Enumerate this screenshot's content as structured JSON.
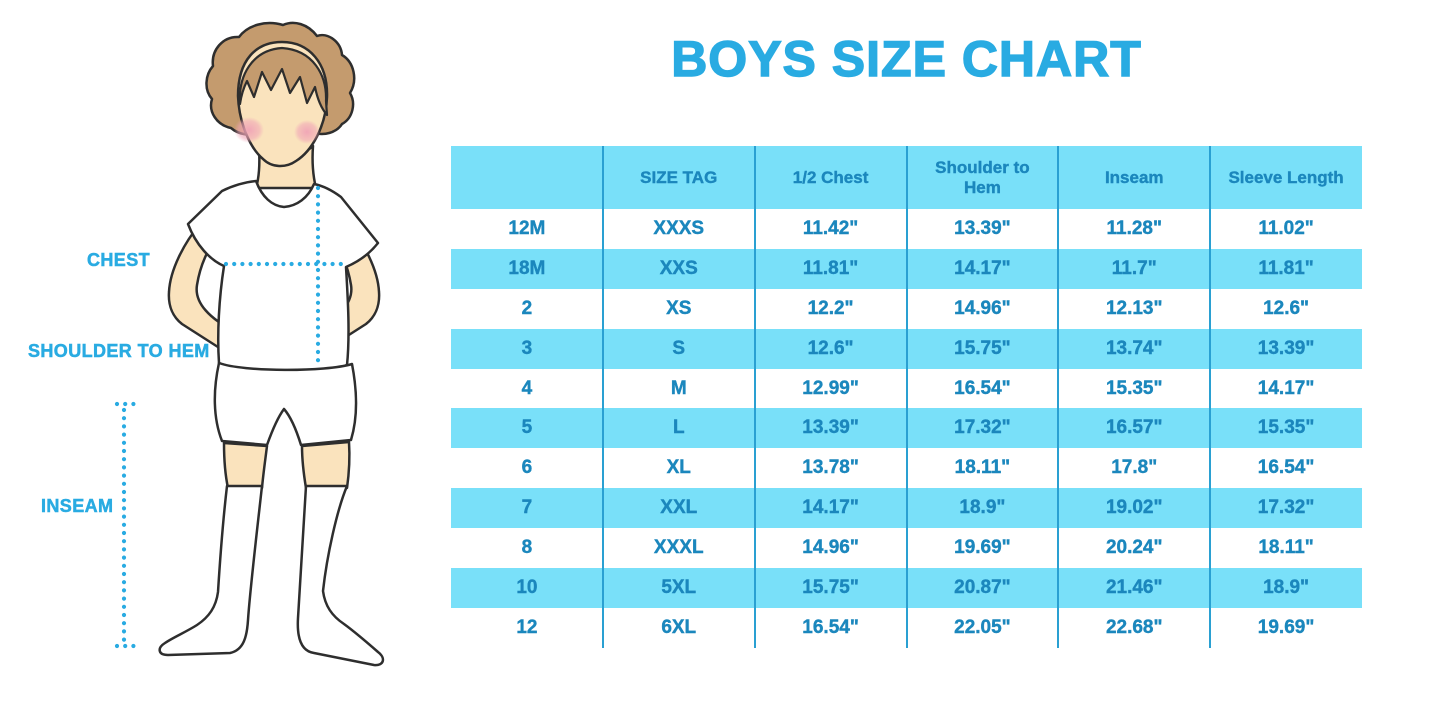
{
  "title": "BOYS SIZE CHART",
  "figure": {
    "labels": {
      "chest": "CHEST",
      "shoulder_to_hem": "SHOULDER TO HEM",
      "inseam": "INSEAM"
    }
  },
  "colors": {
    "accent_blue": "#29abe2",
    "table_fill": "#79e0f9",
    "table_text": "#1b87bd",
    "table_divider": "#2aa0d2",
    "dotted_line": "#29abe2",
    "skin": "#fae3bd",
    "hair": "#c49b6e",
    "blush": "#f0a4b6",
    "outline": "#2e2e2e"
  },
  "chart_data": {
    "type": "table",
    "title": "BOYS SIZE CHART",
    "columns": [
      "",
      "SIZE TAG",
      "1/2 Chest",
      "Shoulder to Hem",
      "Inseam",
      "Sleeve Length"
    ],
    "rows": [
      [
        "12M",
        "XXXS",
        "11.42\"",
        "13.39\"",
        "11.28\"",
        "11.02\""
      ],
      [
        "18M",
        "XXS",
        "11.81\"",
        "14.17\"",
        "11.7\"",
        "11.81\""
      ],
      [
        "2",
        "XS",
        "12.2\"",
        "14.96\"",
        "12.13\"",
        "12.6\""
      ],
      [
        "3",
        "S",
        "12.6\"",
        "15.75\"",
        "13.74\"",
        "13.39\""
      ],
      [
        "4",
        "M",
        "12.99\"",
        "16.54\"",
        "15.35\"",
        "14.17\""
      ],
      [
        "5",
        "L",
        "13.39\"",
        "17.32\"",
        "16.57\"",
        "15.35\""
      ],
      [
        "6",
        "XL",
        "13.78\"",
        "18.11\"",
        "17.8\"",
        "16.54\""
      ],
      [
        "7",
        "XXL",
        "14.17\"",
        "18.9\"",
        "19.02\"",
        "17.32\""
      ],
      [
        "8",
        "XXXL",
        "14.96\"",
        "19.69\"",
        "20.24\"",
        "18.11\""
      ],
      [
        "10",
        "5XL",
        "15.75\"",
        "20.87\"",
        "21.46\"",
        "18.9\""
      ],
      [
        "12",
        "6XL",
        "16.54\"",
        "22.05\"",
        "22.68\"",
        "19.69\""
      ]
    ],
    "row_striping": [
      "white",
      "blue",
      "white",
      "blue",
      "white",
      "blue",
      "white",
      "blue",
      "white",
      "blue",
      "white"
    ],
    "header_fill": "blue",
    "grid": "vertical dividers only, no outer border"
  }
}
